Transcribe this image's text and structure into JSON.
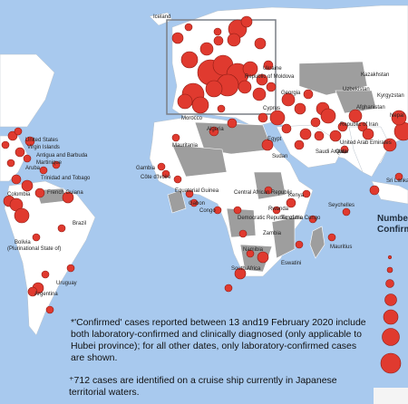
{
  "colors": {
    "ocean": "#a8c9ee",
    "land": "#ffffff",
    "affected_land": "#9e9e9e",
    "bubble": "#e03a2f",
    "bubble_stroke": "#8e1c14"
  },
  "legend": {
    "title_line1": "Numbe",
    "title_line2": "Confirm"
  },
  "notes": {
    "confirmed_note": "*'Confirmed' cases reported between 13 and19 February 2020 include both laboratory-confirmed and clinically diagnosed (only applicable to Hubei province); for all other dates, only laboratory-confirmed cases are shown.",
    "cruise_note": "⁺712 cases are identified on a cruise ship currently in Japanese territorial waters."
  },
  "labels": [
    {
      "name": "iceland",
      "text": "Iceland"
    },
    {
      "name": "kazakhstan",
      "text": "Kazakhstan"
    },
    {
      "name": "uzbekistan",
      "text": "Uzbekistan"
    },
    {
      "name": "kyrgyzstan",
      "text": "Kyrgyzstan"
    },
    {
      "name": "georgia",
      "text": "Georgia"
    },
    {
      "name": "ukraine",
      "text": "Ukraine"
    },
    {
      "name": "moldova",
      "text": "Republic of Moldova"
    },
    {
      "name": "cyprus",
      "text": "Cyprus"
    },
    {
      "name": "afghanistan",
      "text": "Afghanistan"
    },
    {
      "name": "nepal",
      "text": "Nepal"
    },
    {
      "name": "uae",
      "text": "United Arab Emirates"
    },
    {
      "name": "saudi",
      "text": "Saudi Arabia"
    },
    {
      "name": "egypt",
      "text": "Egypt"
    },
    {
      "name": "algeria",
      "text": "Algeria"
    },
    {
      "name": "morocco",
      "text": "Morocco"
    },
    {
      "name": "sudan",
      "text": "Sudan"
    },
    {
      "name": "mauritania",
      "text": "Mauritania"
    },
    {
      "name": "gambia",
      "text": "Gambia"
    },
    {
      "name": "cote",
      "text": "Côte d'Ivoire"
    },
    {
      "name": "eqguinea",
      "text": "Equatorial Guinea"
    },
    {
      "name": "gabon",
      "text": "Gabon"
    },
    {
      "name": "congo",
      "text": "Congo"
    },
    {
      "name": "car",
      "text": "Central African Republic"
    },
    {
      "name": "kenya",
      "text": "Kenya"
    },
    {
      "name": "rwanda",
      "text": "Rwanda"
    },
    {
      "name": "tanzania",
      "text": "Tanzania"
    },
    {
      "name": "seychelles",
      "text": "Seychelles"
    },
    {
      "name": "zambia",
      "text": "Zambia"
    },
    {
      "name": "namibia",
      "text": "Namibia"
    },
    {
      "name": "eswatini",
      "text": "Eswatini"
    },
    {
      "name": "southafrica",
      "text": "South Africa"
    },
    {
      "name": "mauritius",
      "text": "Mauritius"
    },
    {
      "name": "drc",
      "text": "Democratic Republic of the Congo"
    },
    {
      "name": "united_states",
      "text": "United States"
    },
    {
      "name": "virgin",
      "text": "Virgin Islands"
    },
    {
      "name": "antigua",
      "text": "Antigua and Barbuda"
    },
    {
      "name": "aruba",
      "text": "Aruba"
    },
    {
      "name": "martinique",
      "text": "Martinique"
    },
    {
      "name": "trinidad",
      "text": "Trinidad and Tobago"
    },
    {
      "name": "frguiana",
      "text": "French Guiana"
    },
    {
      "name": "colombia",
      "text": "Colombia"
    },
    {
      "name": "brazil",
      "text": "Brazil"
    },
    {
      "name": "bolivia",
      "text": "Bolivia"
    },
    {
      "name": "plurinational",
      "text": "(Plurinational State of)"
    },
    {
      "name": "uruguay",
      "text": "Uruguay"
    },
    {
      "name": "argentina",
      "text": "Argentina"
    },
    {
      "name": "srilanka",
      "text": "Sri Lanka"
    },
    {
      "name": "qatar",
      "text": "Qatar"
    },
    {
      "name": "iran",
      "text": "Republic of Iran"
    }
  ]
}
